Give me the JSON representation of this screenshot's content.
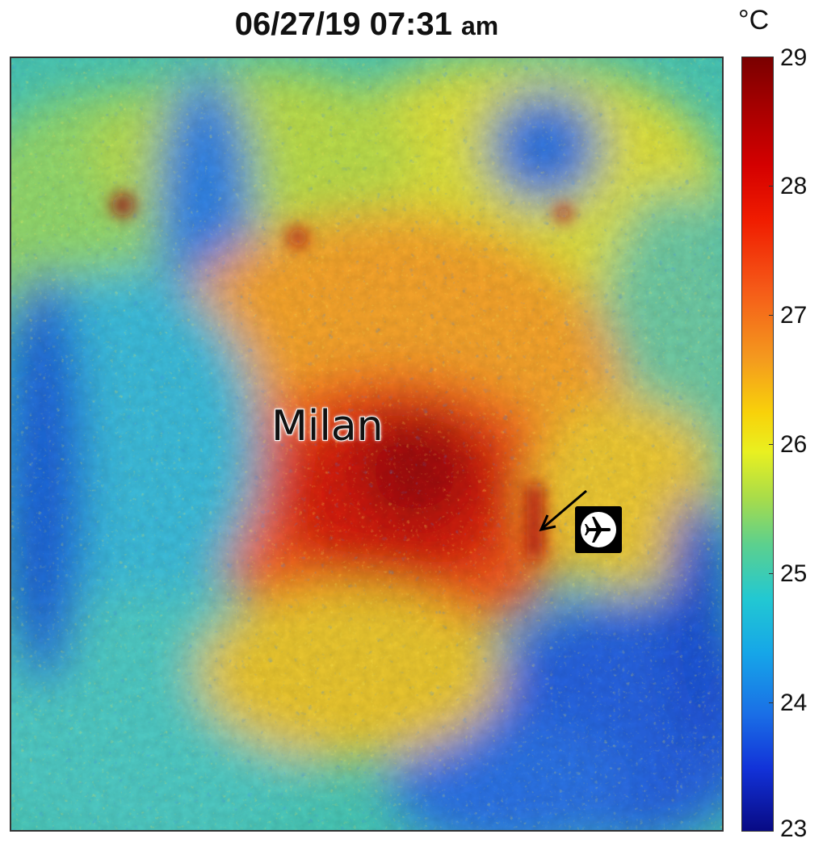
{
  "title": {
    "datetime": "06/27/19 07:31",
    "ampm": "am"
  },
  "map": {
    "city_label": "Milan",
    "airport_icon": "airplane-icon"
  },
  "colorbar": {
    "unit": "°C",
    "min": 23,
    "max": 29,
    "ticks": [
      "29",
      "28",
      "27",
      "26",
      "25",
      "24",
      "23"
    ],
    "colors": [
      "#7a0000",
      "#d40000",
      "#f49a1e",
      "#e9f020",
      "#5cd08e",
      "#22c8d2",
      "#1a6ee6",
      "#080a84"
    ]
  }
}
